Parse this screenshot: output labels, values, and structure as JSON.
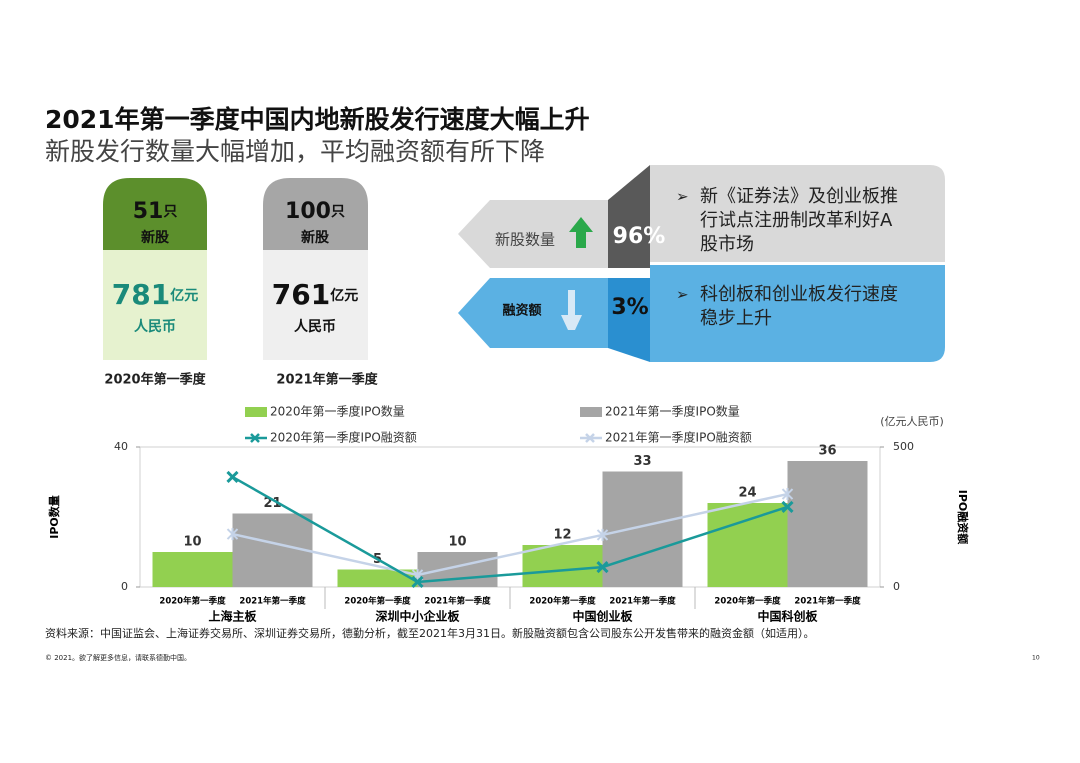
{
  "title": "2021年第一季度中国内地新股发行速度大幅上升",
  "subtitle": "新股发行数量大幅增加，平均融资额有所下降",
  "cards": [
    {
      "count": "51",
      "count_unit": "只",
      "count_label": "新股",
      "amount": "781",
      "amount_unit": "亿元",
      "amount_label": "人民币",
      "period": "2020年第一季度"
    },
    {
      "count": "100",
      "count_unit": "只",
      "count_label": "新股",
      "amount": "761",
      "amount_unit": "亿元",
      "amount_label": "人民币",
      "period": "2021年第一季度"
    }
  ],
  "changes": [
    {
      "label": "新股数量",
      "value": "96%"
    },
    {
      "label": "融资额",
      "value": "3%"
    }
  ],
  "notes": [
    [
      "新《证券法》及创业板推",
      "行试点注册制改革利好A",
      "股市场"
    ],
    [
      "科创板和创业板发行速度",
      "稳步上升"
    ]
  ],
  "chart_data": {
    "type": "bar",
    "categories": [
      "上海主板",
      "深圳中小企业板",
      "中国创业板",
      "中国科创板"
    ],
    "subcategories": [
      "2020年第一季度",
      "2021年第一季度"
    ],
    "series": [
      {
        "name": "2020年第一季度IPO数量",
        "type": "bar",
        "color": "#92d050",
        "values": [
          10,
          5,
          12,
          24
        ]
      },
      {
        "name": "2021年第一季度IPO数量",
        "type": "bar",
        "color": "#a5a5a5",
        "values": [
          21,
          10,
          33,
          36
        ]
      },
      {
        "name": "2020年第一季度IPO融资额",
        "type": "line",
        "axis": "y2",
        "color": "#1a9a9a",
        "values": [
          393,
          18,
          71,
          286
        ]
      },
      {
        "name": "2021年第一季度IPO融资额",
        "type": "line",
        "axis": "y2",
        "color": "#c5d3e8",
        "values": [
          189,
          43,
          186,
          332
        ]
      }
    ],
    "ylim": [
      0,
      40
    ],
    "yticks": [
      0,
      40
    ],
    "y2lim": [
      0,
      500
    ],
    "y2ticks": [
      0,
      500
    ],
    "y_label": "IPO数量",
    "y2_label": "IPO融资额",
    "y2_unit": "(亿元人民币)"
  },
  "source": "资料来源：中国证监会、上海证券交易所、深圳证券交易所，德勤分析，截至2021年3月31日。新股融资额包含公司股东公开发售带来的融资金额（如适用）。",
  "footer": "© 2021。欲了解更多信息，请联系德勤中国。",
  "page_number": "10"
}
